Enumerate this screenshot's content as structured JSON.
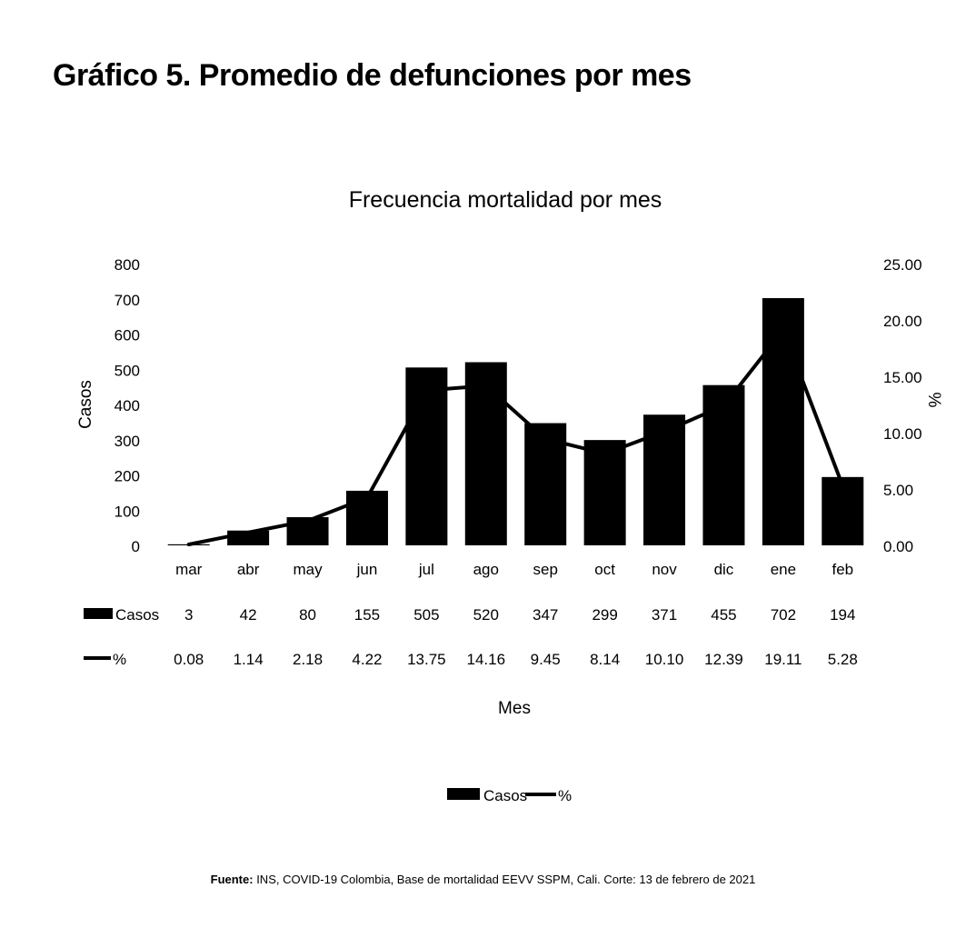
{
  "page": {
    "title": "Gráfico 5. Promedio de defunciones por mes",
    "source_label": "Fuente:",
    "source_text": " INS, COVID-19 Colombia, Base de mortalidad EEVV SSPM, Cali. Corte: 13 de febrero de 2021"
  },
  "chart_data": {
    "type": "bar",
    "title": "Frecuencia mortalidad por mes",
    "xlabel": "Mes",
    "ylabel": "Casos",
    "y2label": "%",
    "categories": [
      "mar",
      "abr",
      "may",
      "jun",
      "jul",
      "ago",
      "sep",
      "oct",
      "nov",
      "dic",
      "ene",
      "feb"
    ],
    "series": [
      {
        "name": "Casos",
        "type": "bar",
        "axis": "left",
        "color": "#000000",
        "values": [
          3,
          42,
          80,
          155,
          505,
          520,
          347,
          299,
          371,
          455,
          702,
          194
        ],
        "labels": [
          "3",
          "42",
          "80",
          "155",
          "505",
          "520",
          "347",
          "299",
          "371",
          "455",
          "702",
          "194"
        ]
      },
      {
        "name": "%",
        "type": "line",
        "axis": "right",
        "color": "#000000",
        "values": [
          0.08,
          1.14,
          2.18,
          4.22,
          13.75,
          14.16,
          9.45,
          8.14,
          10.1,
          12.39,
          19.11,
          5.28
        ],
        "labels": [
          "0.08",
          "1.14",
          "2.18",
          "4.22",
          "13.75",
          "14.16",
          "9.45",
          "8.14",
          "10.10",
          "12.39",
          "19.11",
          "5.28"
        ]
      }
    ],
    "ylim": [
      0,
      800
    ],
    "yticks": [
      "0",
      "100",
      "200",
      "300",
      "400",
      "500",
      "600",
      "700",
      "800"
    ],
    "y2lim": [
      0,
      25
    ],
    "y2ticks": [
      "0.00",
      "5.00",
      "10.00",
      "15.00",
      "20.00",
      "25.00"
    ],
    "data_table": true,
    "legend": {
      "position": "bottom",
      "items": [
        "Casos",
        "%"
      ]
    },
    "grid": false
  }
}
